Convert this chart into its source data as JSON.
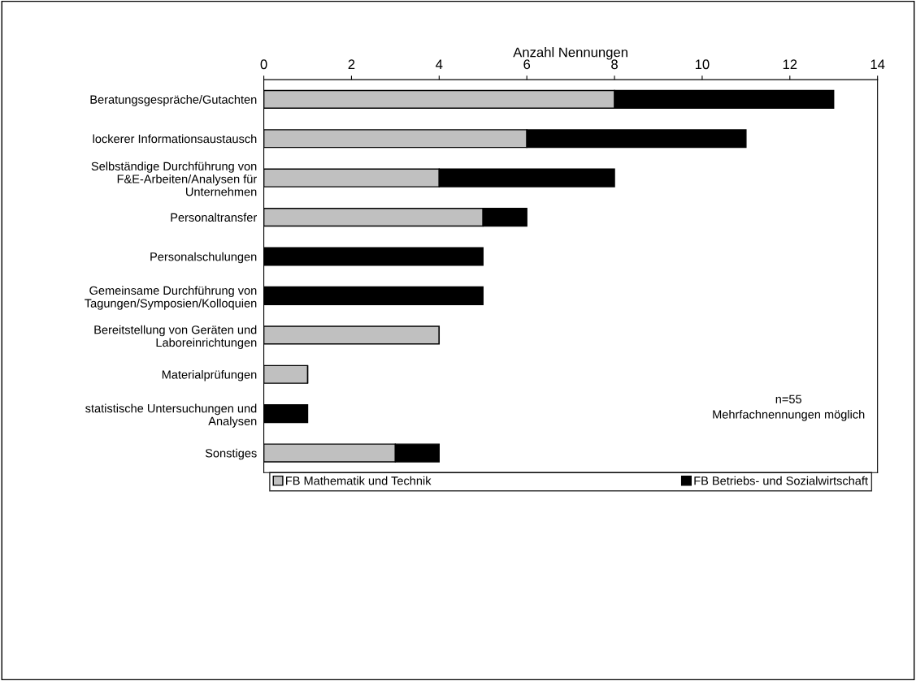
{
  "chart_data": {
    "type": "bar",
    "orientation": "horizontal",
    "stacked": true,
    "xlabel": "Anzahl Nennungen",
    "categories": [
      "Beratungsgespräche/Gutachten",
      "lockerer Informationsaustausch",
      "Selbständige Durchführung von\nF&E-Arbeiten/Analysen für\nUnternehmen",
      "Personaltransfer",
      "Personalschulungen",
      "Gemeinsame Durchführung von\nTagungen/Symposien/Kolloquien",
      "Bereitstellung von Geräten und\nLaboreinrichtungen",
      "Materialprüfungen",
      "statistische Untersuchungen und\nAnalysen",
      "Sonstiges"
    ],
    "series": [
      {
        "name": "FB Mathematik und Technik",
        "color": "#c0c0c0",
        "values": [
          8,
          6,
          4,
          5,
          0,
          0,
          4,
          1,
          0,
          3
        ]
      },
      {
        "name": "FB Betriebs- und Sozialwirtschaft",
        "color": "#000000",
        "values": [
          5,
          5,
          4,
          1,
          5,
          5,
          0,
          0,
          1,
          1
        ]
      }
    ],
    "xlim": [
      0,
      14
    ],
    "xticks": [
      0,
      2,
      4,
      6,
      8,
      10,
      12,
      14
    ],
    "grid": false,
    "legend": "bottom",
    "annotations": [
      "n=55\nMehrfachnennungen möglich"
    ]
  }
}
